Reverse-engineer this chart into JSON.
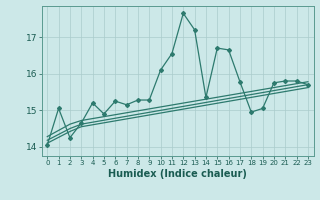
{
  "xlabel": "Humidex (Indice chaleur)",
  "background_color": "#cce8e8",
  "grid_color": "#aacccc",
  "line_color": "#2d7a6e",
  "xlim": [
    -0.5,
    23.5
  ],
  "ylim": [
    13.75,
    17.85
  ],
  "yticks": [
    14,
    15,
    16,
    17
  ],
  "xticks": [
    0,
    1,
    2,
    3,
    4,
    5,
    6,
    7,
    8,
    9,
    10,
    11,
    12,
    13,
    14,
    15,
    16,
    17,
    18,
    19,
    20,
    21,
    22,
    23
  ],
  "line1_x": [
    0,
    1,
    2,
    3,
    4,
    5,
    6,
    7,
    8,
    9,
    10,
    11,
    12,
    13,
    14,
    15,
    16,
    17,
    18,
    19,
    20,
    21,
    22,
    23
  ],
  "line1_y": [
    14.05,
    15.05,
    14.25,
    14.65,
    15.2,
    14.9,
    15.25,
    15.15,
    15.28,
    15.28,
    16.1,
    16.55,
    17.65,
    17.2,
    15.35,
    16.7,
    16.65,
    15.78,
    14.95,
    15.05,
    15.75,
    15.8,
    15.8,
    15.7
  ],
  "line2_x": [
    0,
    2,
    3,
    23
  ],
  "line2_y": [
    14.1,
    14.42,
    14.55,
    15.62
  ],
  "line3_x": [
    0,
    2,
    3,
    23
  ],
  "line3_y": [
    14.18,
    14.5,
    14.62,
    15.7
  ],
  "line4_x": [
    0,
    2,
    3,
    23
  ],
  "line4_y": [
    14.28,
    14.62,
    14.72,
    15.78
  ]
}
